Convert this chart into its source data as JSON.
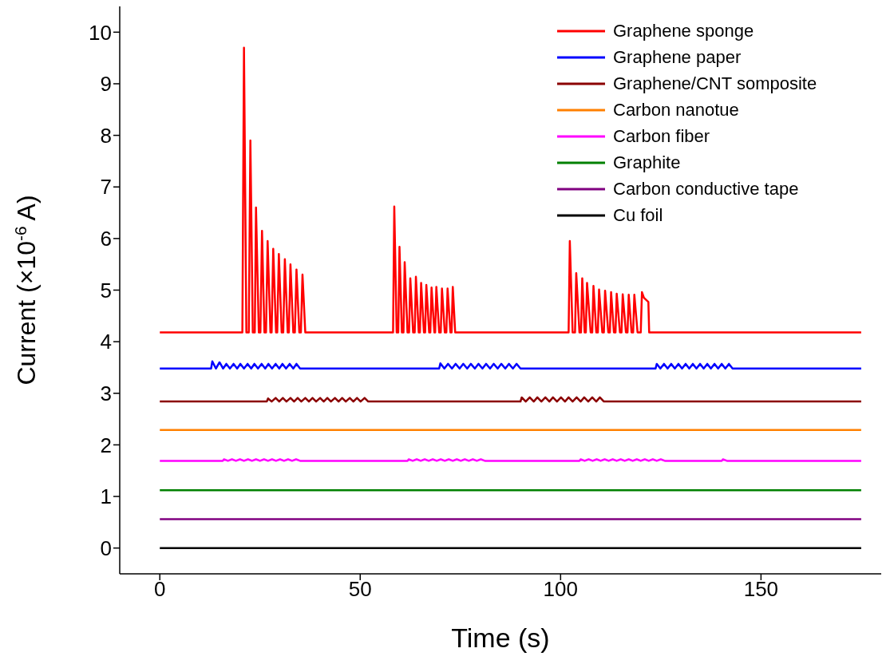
{
  "chart_data": {
    "type": "line",
    "xlabel": "Time (s)",
    "ylabel": "Current (×10$^{-6}$ A)",
    "xlim": [
      -10,
      180
    ],
    "xticks": [
      0,
      50,
      100,
      150
    ],
    "ylim": [
      -0.5,
      10.5
    ],
    "yticks": [
      0,
      1,
      2,
      3,
      4,
      5,
      6,
      7,
      8,
      9,
      10
    ],
    "legend": "top right",
    "marker": "none",
    "line_style": "solid",
    "series": [
      {
        "name": "Graphene sponge",
        "color": "#ff0000",
        "x": [
          0,
          20.6,
          21.0,
          21.6,
          22.2,
          22.6,
          23.2,
          23.7,
          24.0,
          24.7,
          25.1,
          25.5,
          26.1,
          26.5,
          26.9,
          27.6,
          27.9,
          28.3,
          29.0,
          29.3,
          29.7,
          30.4,
          30.8,
          31.2,
          31.9,
          32.2,
          32.6,
          33.3,
          33.7,
          34.1,
          34.8,
          35.2,
          35.6,
          36.3,
          58.2,
          58.5,
          59.1,
          59.5,
          59.8,
          60.4,
          60.8,
          61.1,
          61.8,
          62.2,
          62.5,
          63.2,
          63.6,
          63.9,
          64.6,
          64.9,
          65.2,
          65.9,
          66.2,
          66.5,
          67.2,
          67.5,
          67.8,
          68.5,
          68.7,
          69.0,
          69.7,
          70.1,
          70.4,
          71.1,
          71.5,
          71.8,
          72.5,
          72.8,
          73.1,
          73.7,
          102.0,
          102.3,
          103.0,
          103.6,
          103.9,
          104.7,
          105.1,
          105.4,
          106.0,
          106.3,
          106.6,
          107.5,
          107.9,
          108.2,
          108.9,
          109.3,
          109.6,
          110.4,
          110.8,
          111.1,
          111.9,
          112.3,
          112.6,
          113.3,
          113.7,
          114.0,
          114.8,
          115.2,
          115.5,
          116.3,
          116.7,
          117.0,
          117.7,
          118.1,
          118.4,
          119.2,
          120.0,
          120.3,
          120.8,
          121.9,
          122.1,
          175
        ],
        "values": [
          4.18,
          4.18,
          9.7,
          4.18,
          4.18,
          7.9,
          4.18,
          4.18,
          6.6,
          4.18,
          4.18,
          6.15,
          4.18,
          4.18,
          5.95,
          4.18,
          4.18,
          5.8,
          4.18,
          4.18,
          5.7,
          4.18,
          4.18,
          5.6,
          4.18,
          4.18,
          5.5,
          4.18,
          4.18,
          5.4,
          4.18,
          4.18,
          5.3,
          4.18,
          4.18,
          6.62,
          4.18,
          4.18,
          5.84,
          4.18,
          4.18,
          5.54,
          4.18,
          4.18,
          5.23,
          4.18,
          4.18,
          5.26,
          4.18,
          4.18,
          5.14,
          4.18,
          4.18,
          5.1,
          4.18,
          4.18,
          5.05,
          4.18,
          4.18,
          5.06,
          4.18,
          4.18,
          5.03,
          4.18,
          4.18,
          5.03,
          4.18,
          4.18,
          5.06,
          4.18,
          4.18,
          5.95,
          4.18,
          4.18,
          5.33,
          4.18,
          4.18,
          5.23,
          4.18,
          4.18,
          5.14,
          4.18,
          4.18,
          5.08,
          4.18,
          4.18,
          5.01,
          4.18,
          4.18,
          4.99,
          4.18,
          4.18,
          4.96,
          4.18,
          4.18,
          4.93,
          4.18,
          4.18,
          4.92,
          4.18,
          4.18,
          4.91,
          4.18,
          4.18,
          4.91,
          4.18,
          4.18,
          4.96,
          4.85,
          4.77,
          4.18,
          4.18
        ]
      },
      {
        "name": "Graphene paper",
        "color": "#0000ff",
        "x": [
          0,
          12.8,
          13.1,
          14.0,
          14.9,
          15.8,
          16.6,
          17.5,
          18.4,
          19.3,
          20.1,
          21.0,
          21.9,
          22.8,
          23.6,
          24.5,
          25.4,
          26.3,
          27.1,
          28.0,
          28.9,
          29.8,
          30.6,
          31.5,
          32.4,
          33.3,
          34.1,
          35.0,
          69.7,
          70.0,
          71.0,
          71.9,
          72.9,
          73.8,
          74.8,
          75.7,
          76.7,
          77.6,
          78.6,
          79.5,
          80.5,
          81.4,
          82.4,
          83.3,
          84.3,
          85.2,
          86.2,
          87.1,
          88.1,
          89.0,
          90.0,
          123.7,
          124.0,
          124.9,
          125.8,
          126.7,
          127.6,
          128.5,
          129.4,
          130.3,
          131.2,
          132.1,
          133.0,
          133.9,
          134.8,
          135.7,
          136.6,
          137.5,
          138.4,
          139.3,
          140.2,
          141.1,
          142.0,
          142.9,
          175
        ],
        "values": [
          3.48,
          3.48,
          3.62,
          3.48,
          3.6,
          3.48,
          3.57,
          3.48,
          3.57,
          3.48,
          3.57,
          3.48,
          3.57,
          3.48,
          3.57,
          3.48,
          3.57,
          3.48,
          3.57,
          3.48,
          3.57,
          3.48,
          3.57,
          3.48,
          3.57,
          3.48,
          3.57,
          3.48,
          3.48,
          3.58,
          3.48,
          3.57,
          3.48,
          3.57,
          3.48,
          3.57,
          3.48,
          3.57,
          3.48,
          3.57,
          3.48,
          3.57,
          3.48,
          3.57,
          3.48,
          3.57,
          3.48,
          3.57,
          3.48,
          3.57,
          3.48,
          3.48,
          3.57,
          3.48,
          3.57,
          3.48,
          3.57,
          3.48,
          3.57,
          3.48,
          3.57,
          3.48,
          3.57,
          3.48,
          3.57,
          3.48,
          3.57,
          3.48,
          3.57,
          3.48,
          3.57,
          3.48,
          3.57,
          3.48,
          3.48
        ]
      },
      {
        "name": "Graphene/CNT somposite",
        "color": "#8b0000",
        "x": [
          0,
          26.7,
          27.0,
          27.9,
          28.9,
          29.8,
          30.7,
          31.6,
          32.6,
          33.5,
          34.4,
          35.3,
          36.3,
          37.2,
          38.1,
          39.0,
          40.0,
          40.9,
          41.8,
          42.7,
          43.7,
          44.6,
          45.5,
          46.4,
          47.4,
          48.3,
          49.2,
          50.1,
          51.1,
          52.0,
          90.0,
          90.3,
          91.3,
          92.3,
          93.3,
          94.2,
          95.2,
          96.2,
          97.2,
          98.1,
          99.1,
          100.1,
          101.1,
          102.0,
          103.0,
          104.0,
          105.0,
          105.9,
          106.9,
          107.9,
          108.9,
          109.8,
          110.8,
          175
        ],
        "values": [
          2.84,
          2.84,
          2.9,
          2.84,
          2.91,
          2.84,
          2.91,
          2.84,
          2.91,
          2.84,
          2.91,
          2.84,
          2.91,
          2.84,
          2.91,
          2.84,
          2.91,
          2.84,
          2.91,
          2.84,
          2.91,
          2.84,
          2.91,
          2.84,
          2.91,
          2.84,
          2.91,
          2.84,
          2.91,
          2.84,
          2.84,
          2.92,
          2.84,
          2.92,
          2.84,
          2.92,
          2.84,
          2.92,
          2.84,
          2.92,
          2.84,
          2.92,
          2.84,
          2.92,
          2.84,
          2.92,
          2.84,
          2.92,
          2.84,
          2.92,
          2.84,
          2.92,
          2.84,
          2.84
        ]
      },
      {
        "name": "Carbon nanotue",
        "color": "#ff8000",
        "x": [
          0,
          175
        ],
        "values": [
          2.29,
          2.29
        ]
      },
      {
        "name": "Carbon fiber",
        "color": "#ff00ff",
        "x": [
          0,
          15.7,
          16,
          17,
          18,
          19,
          20,
          21,
          22,
          23,
          24,
          25,
          26,
          27,
          28,
          29,
          30,
          31,
          32,
          33,
          34,
          35,
          61.8,
          62.1,
          63.1,
          64.1,
          65.1,
          66.1,
          67.1,
          68.1,
          69.1,
          70.1,
          71.1,
          72.1,
          73.1,
          74.1,
          75.1,
          76.1,
          77.1,
          78.1,
          79.1,
          80.1,
          81.1,
          104.7,
          105,
          106,
          107,
          108,
          109,
          110,
          111,
          112,
          113,
          114,
          115,
          116,
          117,
          118,
          119,
          120,
          121,
          122,
          123,
          124,
          125,
          126,
          140.2,
          140.5,
          141.5,
          175
        ],
        "values": [
          1.69,
          1.69,
          1.72,
          1.69,
          1.72,
          1.69,
          1.72,
          1.69,
          1.72,
          1.69,
          1.72,
          1.69,
          1.72,
          1.69,
          1.72,
          1.69,
          1.72,
          1.69,
          1.72,
          1.69,
          1.72,
          1.69,
          1.69,
          1.72,
          1.69,
          1.72,
          1.69,
          1.72,
          1.69,
          1.72,
          1.69,
          1.72,
          1.69,
          1.72,
          1.69,
          1.72,
          1.69,
          1.72,
          1.69,
          1.72,
          1.69,
          1.72,
          1.69,
          1.69,
          1.72,
          1.69,
          1.72,
          1.69,
          1.72,
          1.69,
          1.72,
          1.69,
          1.72,
          1.69,
          1.72,
          1.69,
          1.72,
          1.69,
          1.72,
          1.69,
          1.72,
          1.69,
          1.72,
          1.69,
          1.72,
          1.69,
          1.69,
          1.72,
          1.69,
          1.69
        ]
      },
      {
        "name": "Graphite",
        "color": "#008000",
        "x": [
          0,
          175
        ],
        "values": [
          1.12,
          1.12
        ]
      },
      {
        "name": "Carbon conductive tape",
        "color": "#800080",
        "x": [
          0,
          175
        ],
        "values": [
          0.56,
          0.56
        ]
      },
      {
        "name": "Cu foil",
        "color": "#000000",
        "x": [
          0,
          175
        ],
        "values": [
          0,
          0
        ]
      }
    ]
  }
}
